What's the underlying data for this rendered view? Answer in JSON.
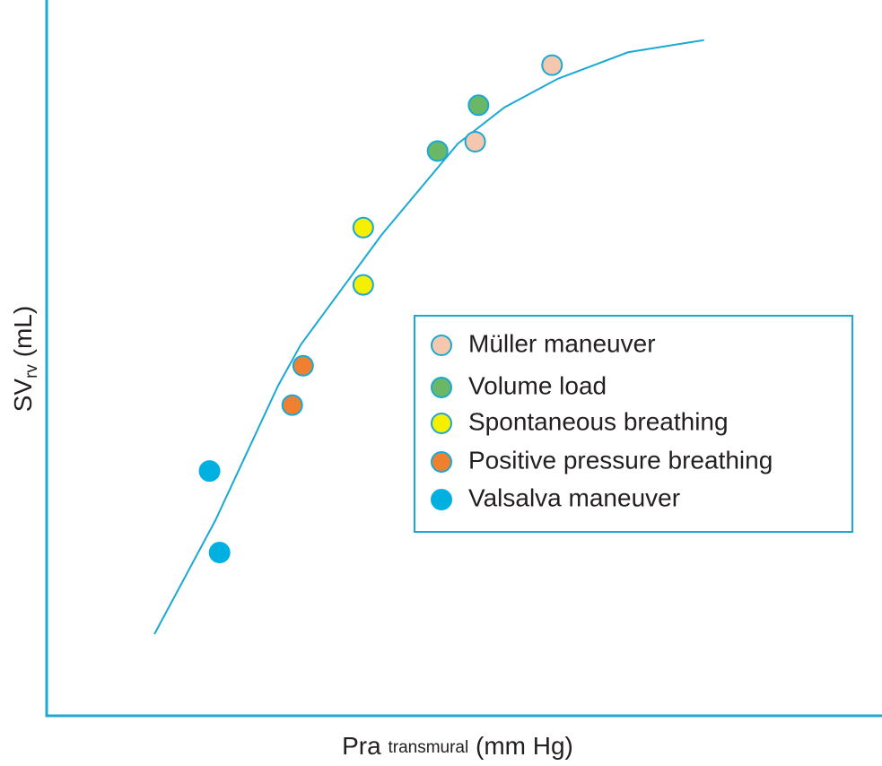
{
  "chart_data": {
    "type": "scatter",
    "x_label": {
      "main": "Pra",
      "sub": "transmural",
      "rest": "(mm Hg)"
    },
    "y_label": {
      "main": "SV",
      "sub": "rv",
      "rest": " (mL)"
    },
    "xlim": [
      0,
      100
    ],
    "ylim": [
      0,
      100
    ],
    "axis_color": "#1aa9d4",
    "legend": "right",
    "series": [
      {
        "name": "Müller maneuver",
        "color": "#f4c7ae",
        "edge": "#1aa9d4",
        "x": [
          60.5,
          51.3
        ],
        "values": [
          90.9,
          80.2
        ]
      },
      {
        "name": "Volume load",
        "color": "#6ab866",
        "edge": "#1aa9d4",
        "x": [
          51.7,
          46.8
        ],
        "values": [
          85.3,
          78.9
        ]
      },
      {
        "name": "Spontaneous breathing",
        "color": "#f7ef00",
        "edge": "#1aa9d4",
        "x": [
          37.9,
          37.9
        ],
        "values": [
          68.2,
          60.2
        ]
      },
      {
        "name": "Positive pressure breathing",
        "color": "#f08030",
        "edge": "#1aa9d4",
        "x": [
          30.7,
          29.4
        ],
        "values": [
          48.9,
          43.4
        ]
      },
      {
        "name": "Valsalva maneuver",
        "color": "#00b0e0",
        "edge": "#00b0e0",
        "x": [
          19.5,
          20.7
        ],
        "values": [
          34.2,
          22.8
        ]
      }
    ],
    "curve": {
      "color": "#1aa9d4",
      "x": [
        12.9,
        20.2,
        27.7,
        30.4,
        40.1,
        49.2,
        54.8,
        61.2,
        69.6,
        78.7
      ],
      "values": [
        11.4,
        27.3,
        46.1,
        51.8,
        67.2,
        79.9,
        85.0,
        89.0,
        92.7,
        94.4
      ]
    }
  }
}
